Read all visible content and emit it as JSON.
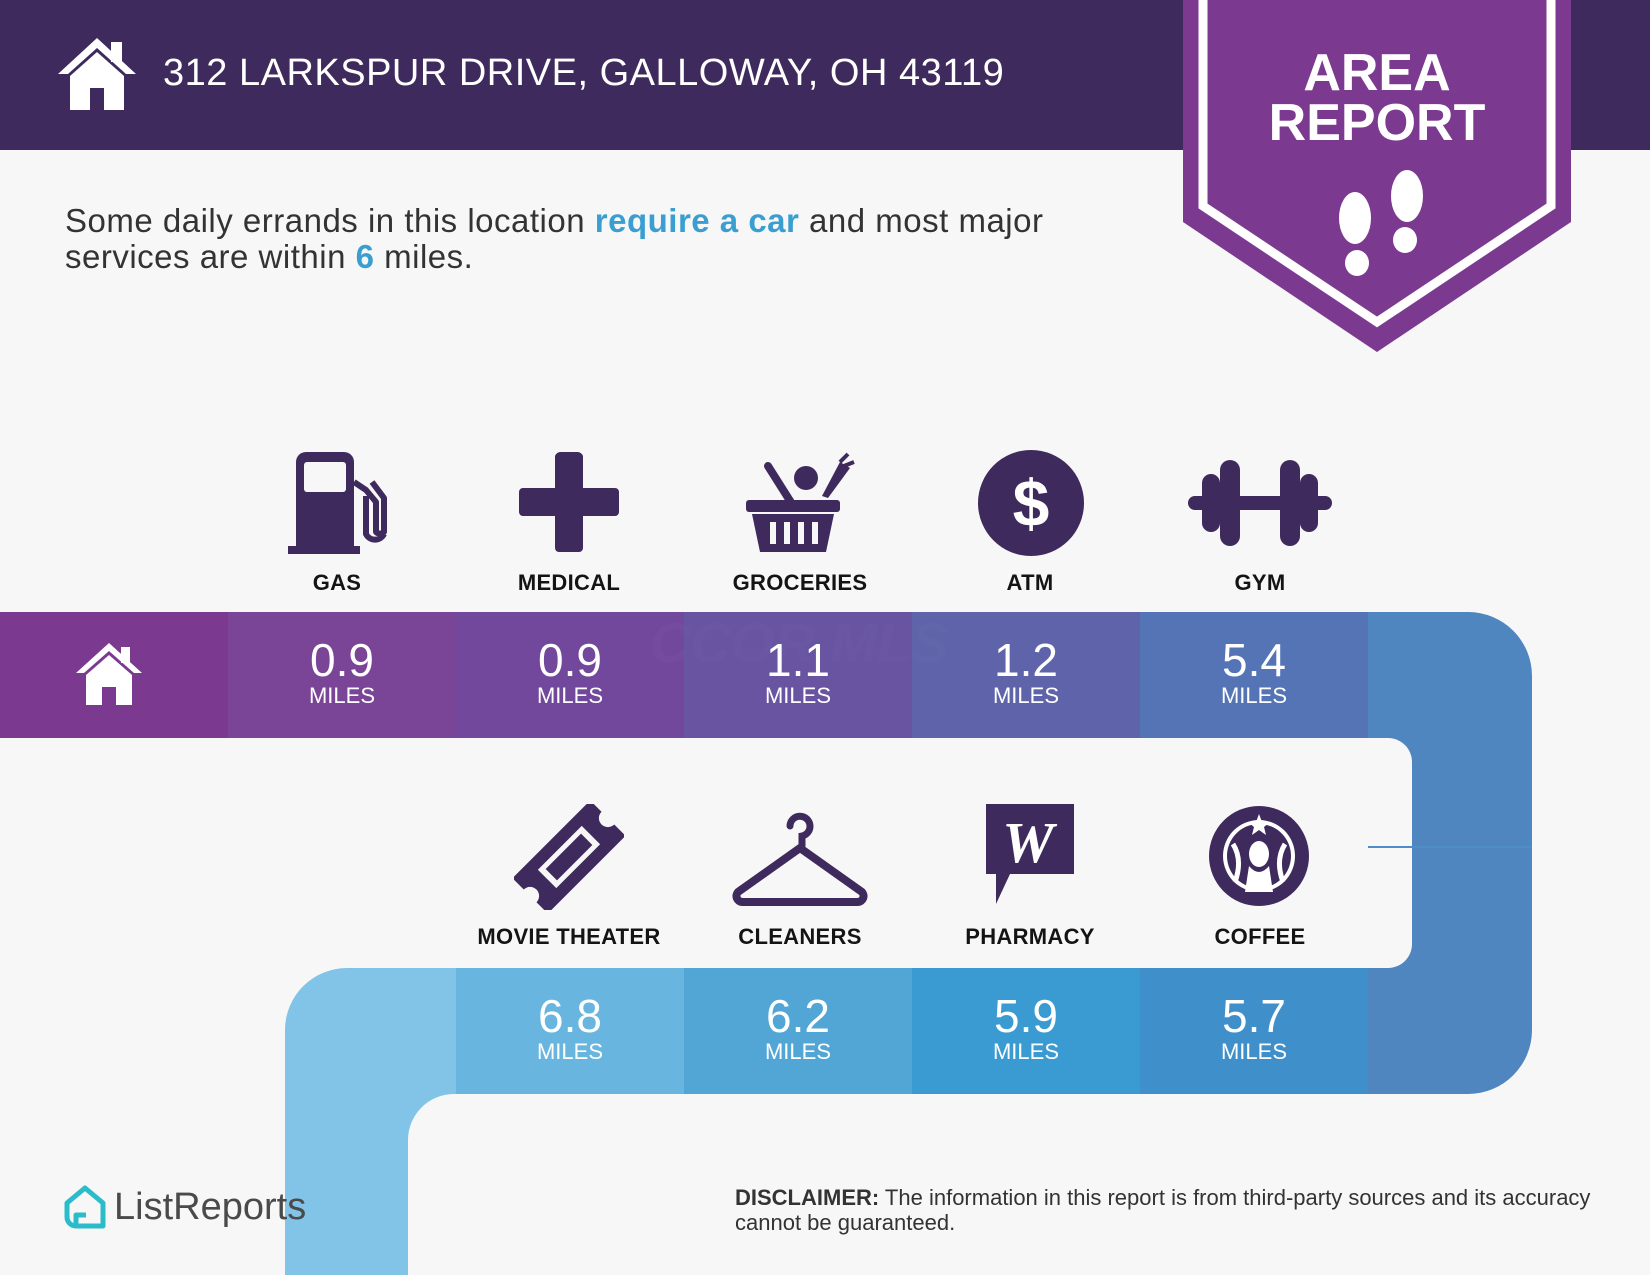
{
  "header": {
    "address": "312 LARKSPUR DRIVE, GALLOWAY, OH 43119",
    "home_icon": "house-icon"
  },
  "badge": {
    "title_line1": "AREA",
    "title_line2": "REPORT",
    "icon": "footprints-icon"
  },
  "intro": {
    "part1": "Some daily errands in this location ",
    "highlight1": "require a car",
    "part2": " and most major services are within ",
    "highlight2": "6",
    "part3": " miles."
  },
  "row1": [
    {
      "label": "GAS",
      "icon": "gas-pump-icon",
      "distance": "0.9",
      "unit": "MILES"
    },
    {
      "label": "MEDICAL",
      "icon": "medical-cross-icon",
      "distance": "0.9",
      "unit": "MILES"
    },
    {
      "label": "GROCERIES",
      "icon": "grocery-basket-icon",
      "distance": "1.1",
      "unit": "MILES"
    },
    {
      "label": "ATM",
      "icon": "dollar-icon",
      "distance": "1.2",
      "unit": "MILES"
    },
    {
      "label": "GYM",
      "icon": "dumbbell-icon",
      "distance": "5.4",
      "unit": "MILES"
    }
  ],
  "row2": [
    {
      "label": "MOVIE THEATER",
      "icon": "ticket-icon",
      "distance": "6.8",
      "unit": "MILES"
    },
    {
      "label": "CLEANERS",
      "icon": "hanger-icon",
      "distance": "6.2",
      "unit": "MILES"
    },
    {
      "label": "PHARMACY",
      "icon": "walgreens-icon",
      "distance": "5.9",
      "unit": "MILES"
    },
    {
      "label": "COFFEE",
      "icon": "starbucks-icon",
      "distance": "5.7",
      "unit": "MILES"
    }
  ],
  "watermark": "CCOR MLS",
  "footer": {
    "brand": "ListReports",
    "disclaimer_label": "DISCLAIMER:",
    "disclaimer_text": " The information in this report is from third-party sources and its accuracy cannot be guaranteed."
  },
  "colors": {
    "header": "#3e2a5c",
    "badge": "#7b3a8f",
    "accent_blue": "#3a9fd0",
    "icon_purple": "#3e2a5c"
  }
}
